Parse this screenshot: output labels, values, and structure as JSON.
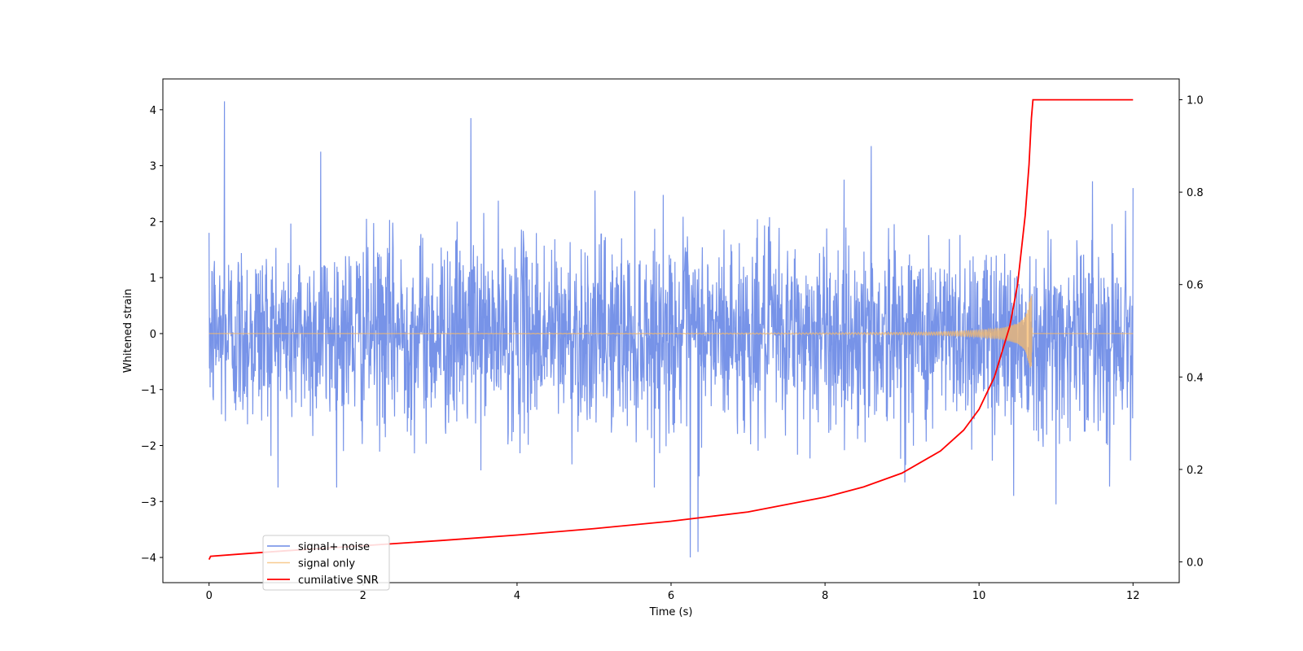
{
  "chart_data": {
    "type": "line",
    "title": "",
    "xlabel": "Time (s)",
    "ylabel": "Whitened strain",
    "y2label": "",
    "xlim": [
      -0.6,
      12.6
    ],
    "ylim": [
      -4.45,
      4.55
    ],
    "y2lim": [
      -0.045,
      1.045
    ],
    "x_ticks": [
      0,
      2,
      4,
      6,
      8,
      10,
      12
    ],
    "y_ticks": [
      -4,
      -3,
      -2,
      -1,
      0,
      1,
      2,
      3,
      4
    ],
    "y2_ticks": [
      0.0,
      0.2,
      0.4,
      0.6,
      0.8,
      1.0
    ],
    "grid": false,
    "legend_position": "lower-left",
    "series": [
      {
        "name": "signal+ noise",
        "color": "#6b8ae6",
        "axis": "left",
        "description_points": {
          "x": [
            0.0,
            0.2,
            1.45,
            3.4,
            6.25,
            6.35,
            8.6,
            10.45,
            11.0,
            12.0
          ],
          "y": [
            1.8,
            4.15,
            3.25,
            3.85,
            -4.0,
            -3.9,
            3.35,
            -2.9,
            -3.05,
            2.6
          ]
        }
      },
      {
        "name": "signal only",
        "color": "#f5b96b",
        "axis": "left",
        "x": [
          0,
          2,
          4,
          6,
          8,
          9,
          9.5,
          10,
          10.3,
          10.5,
          10.6,
          10.68,
          10.69,
          12
        ],
        "y": [
          0.0,
          0.0,
          0.003,
          0.005,
          0.012,
          0.02,
          0.03,
          0.06,
          0.1,
          0.18,
          0.3,
          0.7,
          0.0,
          0.0
        ]
      },
      {
        "name": "cumilative SNR",
        "color": "#ff0000",
        "axis": "right",
        "x": [
          0.0,
          0.02,
          0.5,
          1,
          2,
          3,
          4,
          5,
          6,
          7,
          8,
          8.5,
          9,
          9.5,
          9.8,
          10,
          10.2,
          10.4,
          10.5,
          10.6,
          10.65,
          10.68,
          10.7,
          12.0
        ],
        "y": [
          0.005,
          0.012,
          0.018,
          0.024,
          0.035,
          0.046,
          0.058,
          0.072,
          0.088,
          0.108,
          0.14,
          0.162,
          0.192,
          0.24,
          0.285,
          0.33,
          0.4,
          0.51,
          0.6,
          0.75,
          0.86,
          0.96,
          1.0,
          1.0
        ]
      }
    ]
  }
}
